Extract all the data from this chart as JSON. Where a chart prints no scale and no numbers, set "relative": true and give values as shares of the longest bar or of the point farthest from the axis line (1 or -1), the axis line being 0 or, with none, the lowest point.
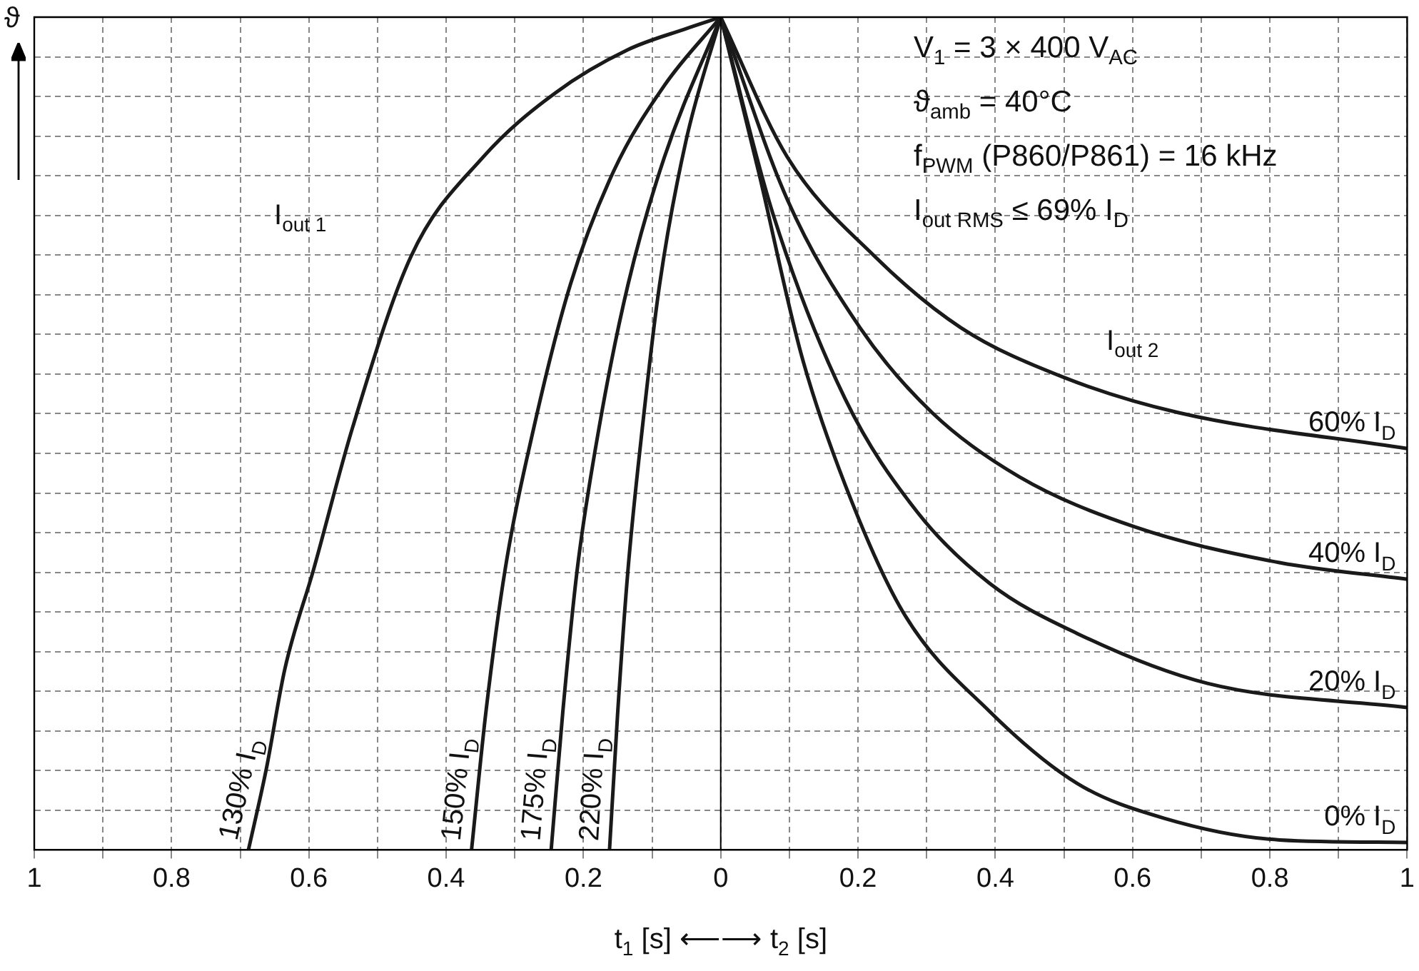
{
  "chart_data": {
    "type": "line",
    "relative": true,
    "ylabel": "ϑ",
    "xlabel": "t$_{1}$ [s] ⟵⟶ t$_{2}$ [s]",
    "xlim": [
      -1,
      1
    ],
    "xticks": [
      {
        "value": -1,
        "label": "1"
      },
      {
        "value": -0.9,
        "label": null
      },
      {
        "value": -0.8,
        "label": "0.8"
      },
      {
        "value": -0.7,
        "label": null
      },
      {
        "value": -0.6,
        "label": "0.6"
      },
      {
        "value": -0.5,
        "label": null
      },
      {
        "value": -0.4,
        "label": "0.4"
      },
      {
        "value": -0.3,
        "label": null
      },
      {
        "value": -0.2,
        "label": "0.2"
      },
      {
        "value": -0.1,
        "label": null
      },
      0,
      {
        "value": 0.1,
        "label": null
      },
      0.2,
      {
        "value": 0.3,
        "label": null
      },
      0.4,
      {
        "value": 0.5,
        "label": null
      },
      0.6,
      {
        "value": 0.7,
        "label": null
      },
      0.8,
      {
        "value": 0.9,
        "label": null
      },
      1
    ],
    "grid": true,
    "legend": false,
    "marker": "none",
    "line_style": "solid",
    "ref_lines": [
      {
        "axis": "x",
        "value": 0,
        "color": "#000000"
      }
    ],
    "annotations": [
      "V$_{1}$ = 3 × 400 V$_{AC}$",
      "ϑ$_{amb}$ = 40°C",
      "f$_{PWM}$ (P860/P861) = 16 kHz",
      "I$_{out RMS}$ ≤ 69% I$_{D}$",
      "I$_{out 1}$",
      "I$_{out 2}$"
    ],
    "series": [
      {
        "name": "130% I$_{D}$",
        "color": "#1a1a1a",
        "x": [
          -0.688,
          -0.662,
          -0.635,
          -0.593,
          -0.536,
          -0.451,
          -0.346,
          -0.241,
          -0.135,
          -0.051,
          0
        ],
        "values": [
          0,
          0.097,
          0.217,
          0.337,
          0.508,
          0.713,
          0.832,
          0.909,
          0.961,
          0.986,
          1
        ]
      },
      {
        "name": "150% I$_{D}$",
        "color": "#1a1a1a",
        "x": [
          -0.363,
          -0.342,
          -0.314,
          -0.272,
          -0.219,
          -0.156,
          -0.082,
          0
        ],
        "values": [
          0,
          0.166,
          0.337,
          0.508,
          0.679,
          0.815,
          0.918,
          1
        ]
      },
      {
        "name": "175% I$_{D}$",
        "color": "#1a1a1a",
        "x": [
          -0.247,
          -0.23,
          -0.209,
          -0.177,
          -0.135,
          -0.082,
          0
        ],
        "values": [
          0,
          0.166,
          0.337,
          0.508,
          0.679,
          0.832,
          1
        ]
      },
      {
        "name": "220% I$_{D}$",
        "color": "#1a1a1a",
        "x": [
          -0.162,
          -0.15,
          -0.135,
          -0.114,
          -0.089,
          -0.051,
          0
        ],
        "values": [
          0,
          0.166,
          0.337,
          0.508,
          0.679,
          0.85,
          1
        ]
      },
      {
        "name": "0% I$_{D}$",
        "color": "#1a1a1a",
        "x": [
          0,
          0.055,
          0.118,
          0.181,
          0.266,
          0.392,
          0.519,
          0.646,
          0.814,
          1
        ],
        "values": [
          1,
          0.815,
          0.593,
          0.439,
          0.285,
          0.166,
          0.08,
          0.038,
          0.012,
          0.009
        ]
      },
      {
        "name": "20% I$_{D}$",
        "color": "#1a1a1a",
        "x": [
          0,
          0.076,
          0.181,
          0.287,
          0.392,
          0.519,
          0.709,
          1
        ],
        "values": [
          1,
          0.764,
          0.542,
          0.405,
          0.32,
          0.26,
          0.2,
          0.171
        ]
      },
      {
        "name": "40% I$_{D}$",
        "color": "#1a1a1a",
        "x": [
          0,
          0.097,
          0.203,
          0.308,
          0.435,
          0.603,
          0.814,
          1
        ],
        "values": [
          1,
          0.781,
          0.627,
          0.525,
          0.448,
          0.388,
          0.345,
          0.325
        ]
      },
      {
        "name": "60% I$_{D}$",
        "color": "#1a1a1a",
        "x": [
          0,
          0.097,
          0.224,
          0.35,
          0.498,
          0.667,
          1
        ],
        "values": [
          1,
          0.832,
          0.713,
          0.627,
          0.568,
          0.525,
          0.482
        ]
      }
    ]
  }
}
